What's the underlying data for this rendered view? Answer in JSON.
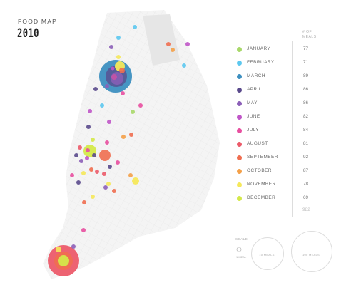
{
  "header": {
    "title": "FOOD MAP",
    "year": "2010"
  },
  "legend": {
    "count_header_line1": "# OF",
    "count_header_line2": "MEALS",
    "months": [
      {
        "label": "JANUARY",
        "count": "77",
        "color": "#a8d86a"
      },
      {
        "label": "FEBRUARY",
        "count": "71",
        "color": "#5cc8ef"
      },
      {
        "label": "MARCH",
        "count": "89",
        "color": "#3d8fc0"
      },
      {
        "label": "APRIL",
        "count": "86",
        "color": "#5a4a8c"
      },
      {
        "label": "MAY",
        "count": "86",
        "color": "#8c5fb8"
      },
      {
        "label": "JUNE",
        "count": "82",
        "color": "#c056c8"
      },
      {
        "label": "JULY",
        "count": "84",
        "color": "#e84fa0"
      },
      {
        "label": "AUGUST",
        "count": "81",
        "color": "#ec5b6a"
      },
      {
        "label": "SEPTEMBER",
        "count": "92",
        "color": "#f06e50"
      },
      {
        "label": "OCTOBER",
        "count": "87",
        "color": "#f4a048"
      },
      {
        "label": "NOVEMBER",
        "count": "78",
        "color": "#f5e85a"
      },
      {
        "label": "DECEMBER",
        "count": "69",
        "color": "#d4e94a"
      }
    ],
    "total": "982"
  },
  "scale": {
    "label": "SCALE",
    "meal_label": "1 MEAL",
    "small_label": "10 MEALS",
    "large_label": "100 MEALS"
  },
  "map": {
    "street_color": "#eeeeee",
    "land_color": "#f2f2f2",
    "park_color": "#e4e4e4"
  }
}
